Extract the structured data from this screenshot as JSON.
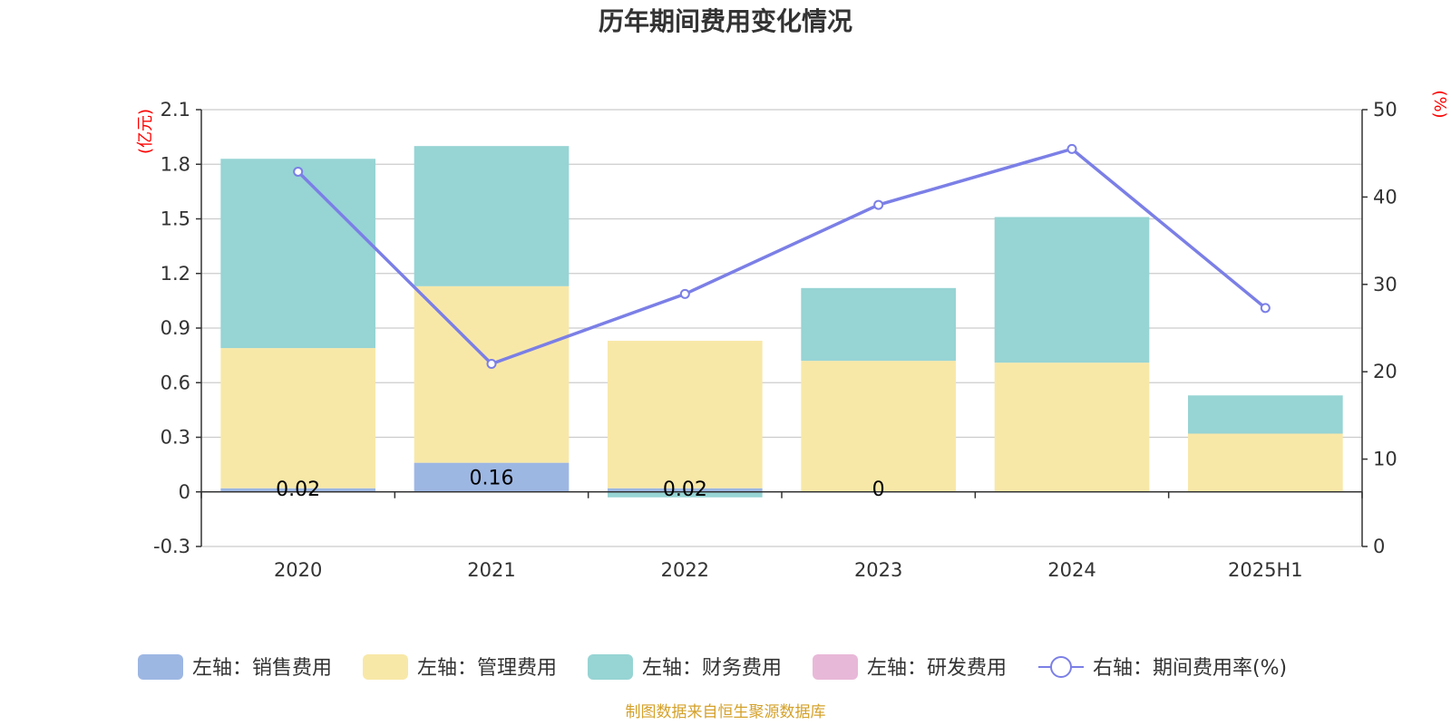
{
  "chart_data": {
    "type": "bar",
    "title": "历年期间费用变化情况",
    "categories": [
      "2020",
      "2021",
      "2022",
      "2023",
      "2024",
      "2025H1"
    ],
    "y_left": {
      "unit": "(亿元)",
      "min": -0.3,
      "max": 2.1,
      "ticks": [
        "2.1",
        "1.8",
        "1.5",
        "1.2",
        "0.9",
        "0.6",
        "0.3",
        "0",
        "-0.3"
      ],
      "tick_values": [
        2.1,
        1.8,
        1.5,
        1.2,
        0.9,
        0.6,
        0.3,
        0,
        -0.3
      ]
    },
    "y_right": {
      "unit": "(%)",
      "min": 0,
      "max": 50,
      "ticks": [
        "50",
        "40",
        "30",
        "20",
        "10",
        "0"
      ],
      "tick_values": [
        50,
        40,
        30,
        20,
        10,
        0
      ]
    },
    "series": [
      {
        "name": "左轴：销售费用",
        "color": "#9db7e3",
        "values": [
          0.02,
          0.16,
          0.02,
          0,
          0,
          0
        ],
        "labels": [
          "0.02",
          "0.16",
          "0.02",
          "0",
          "",
          ""
        ]
      },
      {
        "name": "左轴：管理费用",
        "color": "#f8e8a8",
        "values": [
          0.77,
          0.97,
          0.81,
          0.72,
          0.71,
          0.32
        ]
      },
      {
        "name": "左轴：财务费用",
        "color": "#97d4d4",
        "values": [
          1.04,
          0.77,
          -0.03,
          0.4,
          0.8,
          0.21
        ]
      },
      {
        "name": "左轴：研发费用",
        "color": "#e8b8d8",
        "values": [
          0,
          0,
          0,
          0,
          0,
          0
        ]
      }
    ],
    "line": {
      "name": "右轴：期间费用率(%)",
      "color": "#7b7fe6",
      "values": [
        42.9,
        20.9,
        28.9,
        39.1,
        45.5,
        27.3
      ]
    },
    "legend_position": "bottom-center",
    "grid": true
  },
  "source": "制图数据来自恒生聚源数据库"
}
